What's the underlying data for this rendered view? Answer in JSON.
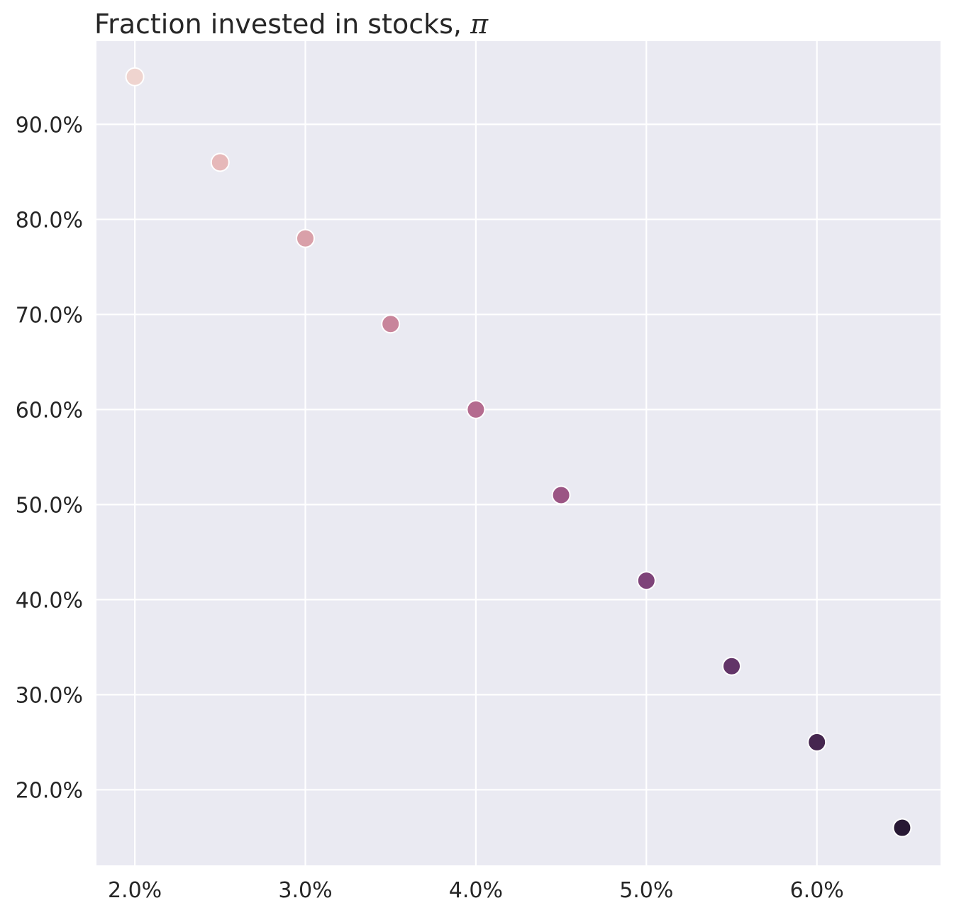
{
  "chart_data": {
    "type": "scatter",
    "title": "Fraction invested in stocks,",
    "title_symbol": "π",
    "xlabel": "",
    "ylabel": "",
    "x": [
      0.02,
      0.025,
      0.03,
      0.035,
      0.04,
      0.045,
      0.05,
      0.055,
      0.06,
      0.065
    ],
    "y": [
      0.95,
      0.86,
      0.78,
      0.69,
      0.6,
      0.51,
      0.42,
      0.33,
      0.25,
      0.16
    ],
    "colors": [
      "#efd4cf",
      "#e6b8b9",
      "#d9a0a9",
      "#c8859b",
      "#b46b8f",
      "#9b5584",
      "#7e4379",
      "#623468",
      "#45264f",
      "#271834"
    ],
    "xlim": [
      0.01775,
      0.06725
    ],
    "ylim": [
      0.1205,
      0.9875
    ],
    "xticks": [
      0.02,
      0.03,
      0.04,
      0.05,
      0.06
    ],
    "xtick_labels": [
      "2.0%",
      "3.0%",
      "4.0%",
      "5.0%",
      "6.0%"
    ],
    "yticks": [
      0.2,
      0.3,
      0.4,
      0.5,
      0.6,
      0.7,
      0.8,
      0.9
    ],
    "ytick_labels": [
      "20.0%",
      "30.0%",
      "40.0%",
      "50.0%",
      "60.0%",
      "70.0%",
      "80.0%",
      "90.0%"
    ],
    "grid": true,
    "legend": "none",
    "background": "#eaeaf2",
    "grid_color": "#ffffff"
  }
}
